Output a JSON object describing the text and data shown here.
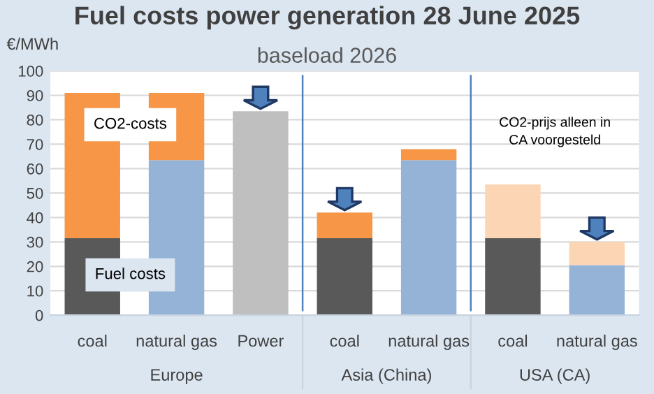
{
  "chart_data": {
    "type": "bar",
    "stacked": true,
    "title": "Fuel costs power generation 28 June 2025",
    "subtitle": "baseload 2026",
    "ylabel": "€/MWh",
    "categories": [
      "coal",
      "natural gas",
      "Power",
      "coal",
      "natural gas",
      "coal",
      "natural gas"
    ],
    "series": [
      {
        "values": [
          31.5,
          63.5,
          83.5,
          31.5,
          63.5,
          31.5,
          20.5
        ],
        "colors": [
          "#595959",
          "#95b3d7",
          "#bfbfbf",
          "#595959",
          "#95b3d7",
          "#595959",
          "#95b3d7"
        ]
      },
      {
        "values": [
          59.5,
          27.5,
          null,
          10.5,
          4.5,
          22,
          9.5
        ],
        "colors": [
          "#f79646",
          "#f79646",
          null,
          "#f79646",
          "#f79646",
          "#fcd5b5",
          "#fcd5b5"
        ]
      }
    ],
    "ylim": [
      0,
      100
    ],
    "yticks": [
      0,
      10,
      20,
      30,
      40,
      50,
      60,
      70,
      80,
      90,
      100
    ],
    "grid": "y",
    "legend": false,
    "annotations": [
      "Europe",
      "Asia (China)",
      "USA (CA)",
      "CO2-costs",
      "Fuel costs",
      "CO2-prijs alleen in\nCA voorgesteld"
    ]
  }
}
